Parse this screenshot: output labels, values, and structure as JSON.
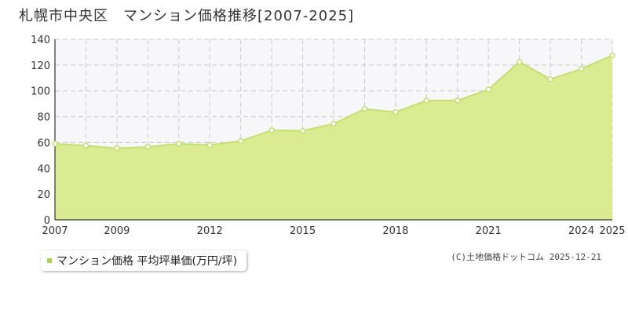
{
  "title": "札幌市中央区　マンション価格推移[2007-2025]",
  "legend_label": "マンション価格 平均坪単価(万円/坪)",
  "credit": "(C)土地価格ドットコム 2025-12-21",
  "colors": {
    "area_fill": "#daeb92",
    "line": "#c3e070",
    "marker_fill": "#ffffff",
    "marker_stroke": "#c3e070",
    "plot_bg": "#f7f6f8",
    "grid": "#cccccc",
    "axis": "#333333",
    "legend_marker": "#aed34b"
  },
  "chart_data": {
    "type": "area",
    "title": "札幌市中央区　マンション価格推移[2007-2025]",
    "x": [
      2007,
      2008,
      2009,
      2010,
      2011,
      2012,
      2013,
      2014,
      2015,
      2016,
      2017,
      2018,
      2019,
      2020,
      2021,
      2022,
      2023,
      2024,
      2025
    ],
    "series": [
      {
        "name": "マンション価格 平均坪単価(万円/坪)",
        "values": [
          59,
          57.5,
          55.5,
          56.5,
          59,
          58,
          61,
          69.5,
          69,
          74.5,
          86,
          83.5,
          92.5,
          92.5,
          101,
          122.5,
          109,
          117,
          127.5
        ]
      }
    ],
    "x_tick_labels": [
      "2007",
      "2009",
      "2012",
      "2015",
      "2018",
      "2021",
      "2024",
      "2025"
    ],
    "y_ticks": [
      0,
      20,
      40,
      60,
      80,
      100,
      120,
      140
    ],
    "xlim": [
      2007,
      2025
    ],
    "ylim": [
      0,
      140
    ],
    "grid": true,
    "legend_position": "bottom-left",
    "xlabel": "",
    "ylabel": ""
  }
}
